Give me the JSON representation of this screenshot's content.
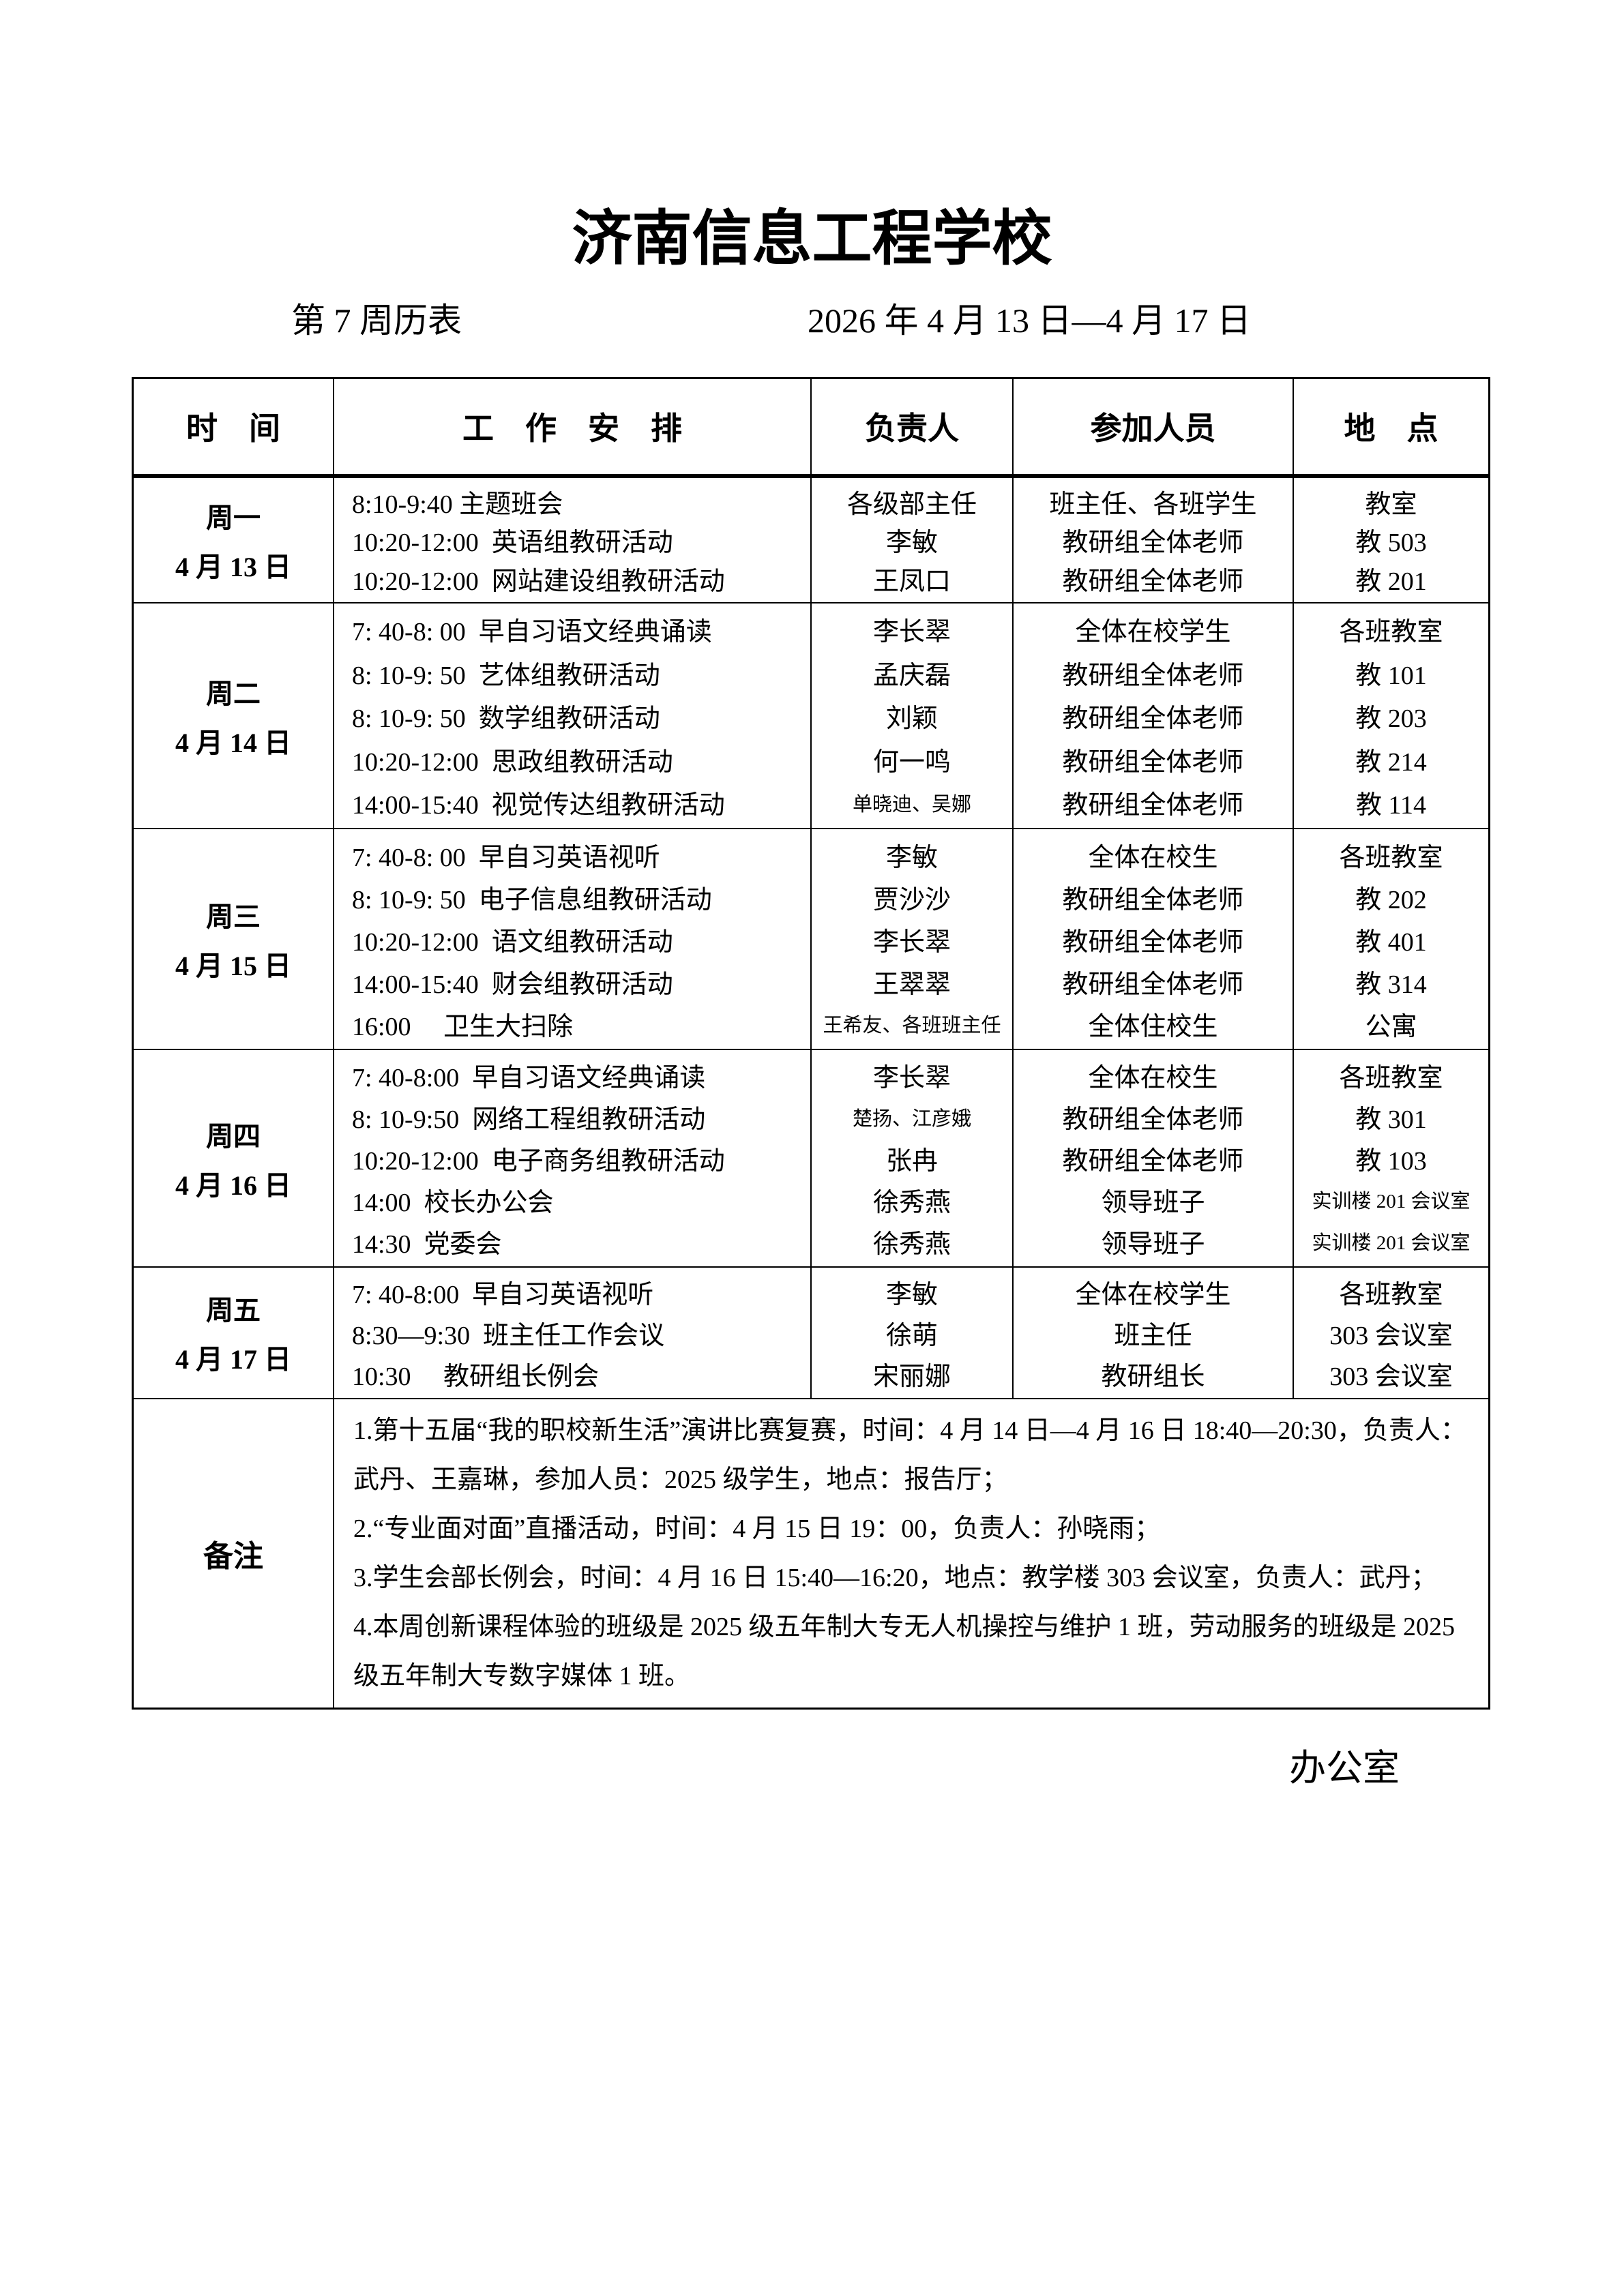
{
  "page": {
    "title": "济南信息工程学校",
    "week_label": "第 7 周历表",
    "date_range": "2026 年 4 月 13 日—4 月 17 日",
    "footer_label": "办公室"
  },
  "table": {
    "headers": [
      "时　间",
      "工　作　安　排",
      "负责人",
      "参加人员",
      "地　点"
    ],
    "rows": [
      {
        "day": "周一",
        "date": "4 月 13 日",
        "lines": [
          {
            "schedule": "8:10-9:40 主题班会",
            "leader": "各级部主任",
            "participants": "班主任、各班学生",
            "location": "教室"
          },
          {
            "schedule": "10:20-12:00  英语组教研活动",
            "leader": "李敏",
            "participants": "教研组全体老师",
            "location": "教 503"
          },
          {
            "schedule": "10:20-12:00  网站建设组教研活动",
            "leader": "王凤口",
            "participants": "教研组全体老师",
            "location": "教 201"
          }
        ]
      },
      {
        "day": "周二",
        "date": "4 月 14 日",
        "lines": [
          {
            "schedule": "7: 40-8: 00  早自习语文经典诵读",
            "leader": "李长翠",
            "participants": "全体在校学生",
            "location": "各班教室"
          },
          {
            "schedule": "8: 10-9: 50  艺体组教研活动",
            "leader": "孟庆磊",
            "participants": "教研组全体老师",
            "location": "教 101"
          },
          {
            "schedule": "8: 10-9: 50  数学组教研活动",
            "leader": "刘颖",
            "participants": "教研组全体老师",
            "location": "教 203"
          },
          {
            "schedule": "10:20-12:00  思政组教研活动",
            "leader": "何一鸣",
            "participants": "教研组全体老师",
            "location": "教 214"
          },
          {
            "schedule": "14:00-15:40  视觉传达组教研活动",
            "leader": "单晓迪、吴娜",
            "leader_small": true,
            "participants": "教研组全体老师",
            "location": "教 114"
          }
        ]
      },
      {
        "day": "周三",
        "date": "4 月 15 日",
        "lines": [
          {
            "schedule": "7: 40-8: 00  早自习英语视听",
            "leader": "李敏",
            "participants": "全体在校生",
            "location": "各班教室"
          },
          {
            "schedule": "8: 10-9: 50  电子信息组教研活动",
            "leader": "贾沙沙",
            "participants": "教研组全体老师",
            "location": "教 202"
          },
          {
            "schedule": "10:20-12:00  语文组教研活动",
            "leader": "李长翠",
            "participants": "教研组全体老师",
            "location": "教 401"
          },
          {
            "schedule": "14:00-15:40  财会组教研活动",
            "leader": "王翠翠",
            "participants": "教研组全体老师",
            "location": "教 314"
          },
          {
            "schedule": "16:00     卫生大扫除",
            "leader": "王希友、各班班主任",
            "leader_small": true,
            "participants": "全体住校生",
            "location": "公寓"
          }
        ]
      },
      {
        "day": "周四",
        "date": "4 月 16 日",
        "lines": [
          {
            "schedule": "7: 40-8:00  早自习语文经典诵读",
            "leader": "李长翠",
            "participants": "全体在校生",
            "location": "各班教室"
          },
          {
            "schedule": "8: 10-9:50  网络工程组教研活动",
            "leader": "楚扬、江彦娥",
            "leader_small": true,
            "participants": "教研组全体老师",
            "location": "教 301"
          },
          {
            "schedule": "10:20-12:00  电子商务组教研活动",
            "leader": "张冉",
            "participants": "教研组全体老师",
            "location": "教 103"
          },
          {
            "schedule": "14:00  校长办公会",
            "leader": "徐秀燕",
            "participants": "领导班子",
            "location": "实训楼 201 会议室",
            "location_small": true
          },
          {
            "schedule": "14:30  党委会",
            "leader": "徐秀燕",
            "participants": "领导班子",
            "location": "实训楼 201 会议室",
            "location_small": true
          }
        ]
      },
      {
        "day": "周五",
        "date": "4 月 17 日",
        "lines": [
          {
            "schedule": "7: 40-8:00  早自习英语视听",
            "leader": "李敏",
            "participants": "全体在校学生",
            "location": "各班教室"
          },
          {
            "schedule": "8:30—9:30  班主任工作会议",
            "leader": "徐萌",
            "participants": "班主任",
            "location": "303 会议室"
          },
          {
            "schedule": "10:30     教研组长例会",
            "leader": "宋丽娜",
            "participants": "教研组长",
            "location": "303 会议室"
          }
        ]
      }
    ],
    "remarks_label": "备注",
    "remarks": [
      "1.第十五届“我的职校新生活”演讲比赛复赛，时间：4 月 14 日—4 月 16 日 18:40—20:30，负责人：武丹、王嘉琳，参加人员：2025 级学生，地点：报告厅；",
      "2.“专业面对面”直播活动，时间：4 月 15 日 19：00，负责人：孙晓雨；",
      "3.学生会部长例会，时间：4 月 16 日 15:40—16:20，地点：教学楼 303 会议室，负责人：武丹；",
      "4.本周创新课程体验的班级是 2025 级五年制大专无人机操控与维护 1 班，劳动服务的班级是 2025 级五年制大专数字媒体 1 班。"
    ]
  }
}
